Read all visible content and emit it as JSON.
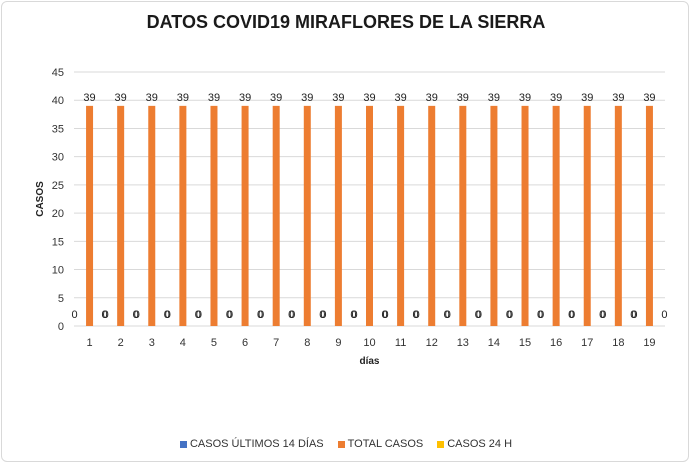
{
  "chart_data": {
    "type": "bar",
    "title": "DATOS COVID19 MIRAFLORES DE LA SIERRA",
    "xlabel": "días",
    "ylabel": "CASOS",
    "ylim": [
      0,
      45
    ],
    "yticks": [
      0,
      5,
      10,
      15,
      20,
      25,
      30,
      35,
      40,
      45
    ],
    "grid": true,
    "legend_position": "bottom",
    "categories": [
      "1",
      "2",
      "3",
      "4",
      "5",
      "6",
      "7",
      "8",
      "9",
      "10",
      "11",
      "12",
      "13",
      "14",
      "15",
      "16",
      "17",
      "18",
      "19"
    ],
    "series": [
      {
        "name": "CASOS ÚLTIMOS 14 DÍAS",
        "color": "#4472c4",
        "values": [
          0,
          0,
          0,
          0,
          0,
          0,
          0,
          0,
          0,
          0,
          0,
          0,
          0,
          0,
          0,
          0,
          0,
          0,
          0
        ]
      },
      {
        "name": "TOTAL CASOS",
        "color": "#ed7d31",
        "values": [
          39,
          39,
          39,
          39,
          39,
          39,
          39,
          39,
          39,
          39,
          39,
          39,
          39,
          39,
          39,
          39,
          39,
          39,
          39
        ]
      },
      {
        "name": "CASOS 24 H",
        "color": "#ffc000",
        "values": [
          0,
          0,
          0,
          0,
          0,
          0,
          0,
          0,
          0,
          0,
          0,
          0,
          0,
          0,
          0,
          0,
          0,
          0,
          0
        ]
      }
    ]
  }
}
